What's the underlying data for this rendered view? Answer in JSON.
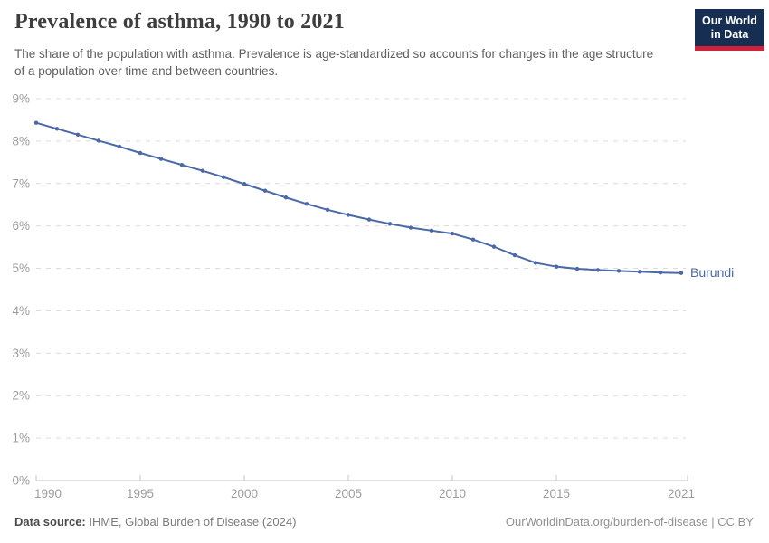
{
  "header": {
    "title": "Prevalence of asthma, 1990 to 2021",
    "subtitle": "The share of the population with asthma. Prevalence is age-standardized so accounts for changes in the age structure of a population over time and between countries."
  },
  "logo": {
    "line1": "Our World",
    "line2": "in Data",
    "bg_color": "#152e52",
    "stripe_color": "#d0233a"
  },
  "chart_data": {
    "type": "line",
    "title": "Prevalence of asthma, 1990 to 2021",
    "xlabel": "",
    "ylabel": "",
    "unit": "%",
    "grid": "horizontal-dashed",
    "legend": "end-of-line-label",
    "xlim": [
      1990,
      2021
    ],
    "ylim": [
      0,
      9
    ],
    "x": [
      1990,
      1991,
      1992,
      1993,
      1994,
      1995,
      1996,
      1997,
      1998,
      1999,
      2000,
      2001,
      2002,
      2003,
      2004,
      2005,
      2006,
      2007,
      2008,
      2009,
      2010,
      2011,
      2012,
      2013,
      2014,
      2015,
      2016,
      2017,
      2018,
      2019,
      2020,
      2021
    ],
    "series": [
      {
        "name": "Burundi",
        "color": "#4a69a6",
        "values": [
          8.43,
          8.29,
          8.15,
          8.01,
          7.87,
          7.72,
          7.58,
          7.44,
          7.3,
          7.15,
          6.99,
          6.83,
          6.67,
          6.52,
          6.38,
          6.26,
          6.15,
          6.05,
          5.96,
          5.89,
          5.82,
          5.68,
          5.51,
          5.31,
          5.13,
          5.04,
          4.99,
          4.96,
          4.94,
          4.92,
          4.9,
          4.89
        ]
      }
    ],
    "y_tick_labels": [
      "0%",
      "1%",
      "2%",
      "3%",
      "4%",
      "5%",
      "6%",
      "7%",
      "8%",
      "9%"
    ],
    "x_tick_labels": [
      "1990",
      "1995",
      "2000",
      "2005",
      "2010",
      "2015",
      "2021"
    ]
  },
  "footer": {
    "source_label": "Data source:",
    "source_value": "IHME, Global Burden of Disease (2024)",
    "credit": "OurWorldinData.org/burden-of-disease | CC BY"
  }
}
